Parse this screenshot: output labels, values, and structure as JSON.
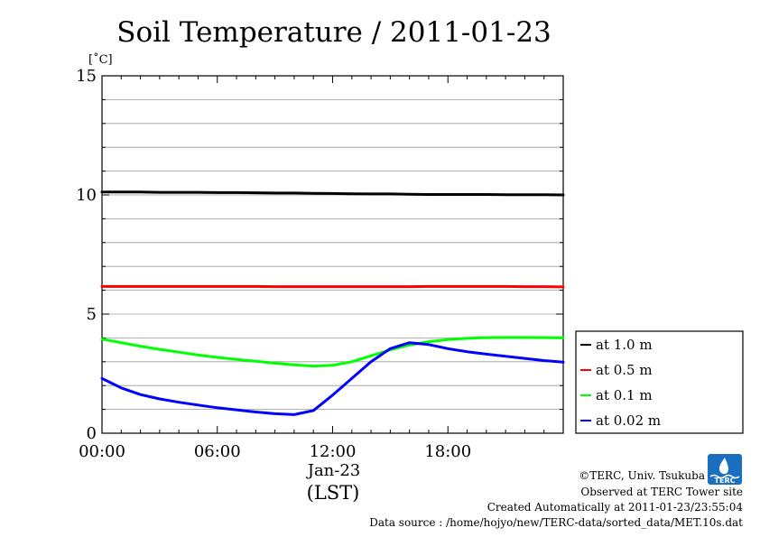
{
  "chart_data": {
    "type": "line",
    "title": "Soil Temperature / 2011-01-23",
    "ylabel": "[˚C]",
    "xlabel": "(LST)",
    "x_date_label": "Jan-23",
    "x": [
      "00:00",
      "01:00",
      "02:00",
      "03:00",
      "04:00",
      "05:00",
      "06:00",
      "07:00",
      "08:00",
      "09:00",
      "10:00",
      "11:00",
      "12:00",
      "13:00",
      "14:00",
      "15:00",
      "16:00",
      "17:00",
      "18:00",
      "19:00",
      "20:00",
      "21:00",
      "22:00",
      "23:00",
      "24:00"
    ],
    "xlim": [
      "00:00",
      "24:00"
    ],
    "xticks": [
      "00:00",
      "06:00",
      "12:00",
      "18:00"
    ],
    "ylim": [
      0,
      15
    ],
    "yticks": [
      0,
      5,
      10,
      15
    ],
    "grid": true,
    "legend_position": "right",
    "series": [
      {
        "name": "at 1.0 m",
        "color": "#000000",
        "values": [
          10.12,
          10.12,
          10.12,
          10.11,
          10.11,
          10.11,
          10.1,
          10.1,
          10.09,
          10.08,
          10.08,
          10.07,
          10.06,
          10.05,
          10.04,
          10.04,
          10.03,
          10.02,
          10.02,
          10.02,
          10.02,
          10.01,
          10.01,
          10.01,
          10.0
        ]
      },
      {
        "name": "at 0.5 m",
        "color": "#ff0000",
        "values": [
          6.16,
          6.16,
          6.16,
          6.16,
          6.16,
          6.16,
          6.16,
          6.16,
          6.16,
          6.15,
          6.15,
          6.15,
          6.15,
          6.15,
          6.15,
          6.15,
          6.15,
          6.16,
          6.16,
          6.16,
          6.16,
          6.16,
          6.15,
          6.15,
          6.14
        ]
      },
      {
        "name": "at 0.1 m",
        "color": "#00ff00",
        "values": [
          3.95,
          3.8,
          3.65,
          3.52,
          3.4,
          3.28,
          3.18,
          3.1,
          3.02,
          2.94,
          2.87,
          2.82,
          2.85,
          3.0,
          3.25,
          3.5,
          3.7,
          3.84,
          3.93,
          3.98,
          4.01,
          4.02,
          4.02,
          4.01,
          4.0
        ]
      },
      {
        "name": "at 0.02 m",
        "color": "#0000ff",
        "values": [
          2.3,
          1.9,
          1.62,
          1.44,
          1.3,
          1.18,
          1.07,
          0.98,
          0.89,
          0.82,
          0.78,
          0.95,
          1.6,
          2.3,
          3.0,
          3.55,
          3.8,
          3.72,
          3.55,
          3.42,
          3.32,
          3.23,
          3.14,
          3.05,
          2.98
        ]
      }
    ]
  },
  "credits": {
    "copyright": "©TERC, Univ. Tsukuba",
    "observed": "Observed at TERC Tower site",
    "created": "Created Automatically at 2011-01-23/23:55:04",
    "source": "Data source : /home/hojyo/new/TERC-data/sorted_data/MET.10s.dat"
  },
  "logo": {
    "text": "TERC",
    "color": "#1a6fc0"
  }
}
